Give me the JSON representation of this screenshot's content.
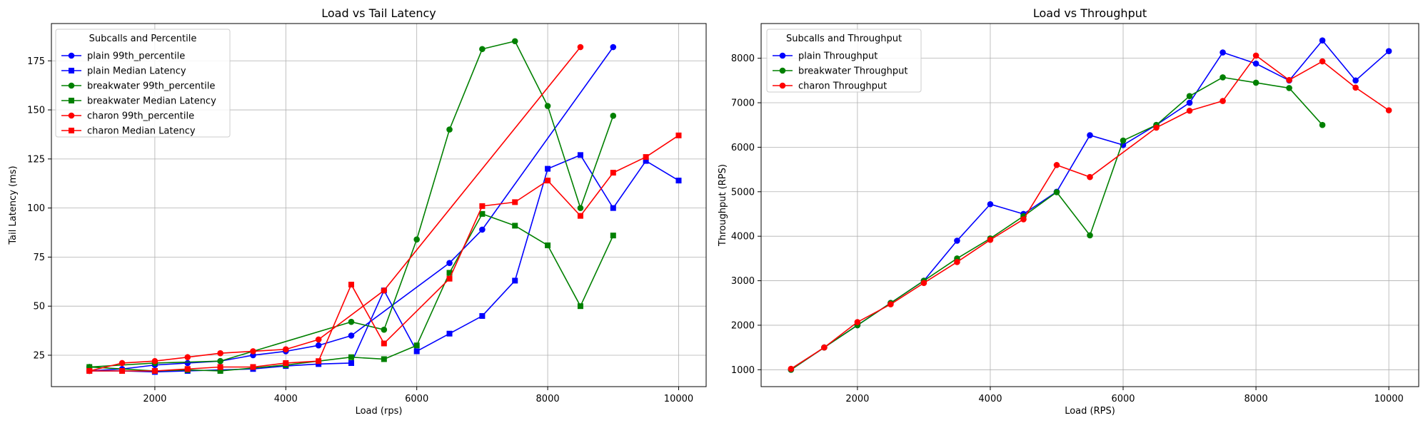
{
  "chart_data": [
    {
      "type": "line",
      "title": "Load vs Tail Latency",
      "xlabel": "Load (rps)",
      "ylabel": "Tail Latency (ms)",
      "xlim": [
        420,
        10420
      ],
      "ylim": [
        9,
        194
      ],
      "xticks": [
        2000,
        4000,
        6000,
        8000,
        10000
      ],
      "yticks": [
        25,
        50,
        75,
        100,
        125,
        150,
        175
      ],
      "grid": true,
      "legend_title": "Subcalls and Percentile",
      "legend_position": "top-left",
      "series": [
        {
          "name": "plain 99th_percentile",
          "color": "#0000ff",
          "marker": "circle",
          "x": [
            1000,
            1500,
            2000,
            2500,
            3000,
            3500,
            4000,
            4500,
            5000,
            6500,
            7000,
            9000
          ],
          "y": [
            17,
            18,
            20,
            21,
            22,
            25,
            27,
            30,
            35,
            72,
            89,
            182
          ]
        },
        {
          "name": "plain Median Latency",
          "color": "#0000ff",
          "marker": "square",
          "x": [
            1000,
            1500,
            2000,
            2500,
            3000,
            3500,
            4000,
            4500,
            5000,
            5500,
            6000,
            6500,
            7000,
            7500,
            8000,
            8500,
            9000,
            9500,
            10000
          ],
          "y": [
            17,
            17,
            16.5,
            17,
            17.5,
            18,
            19.5,
            20.5,
            21,
            58,
            27,
            36,
            45,
            63,
            120,
            127,
            100,
            124,
            114
          ]
        },
        {
          "name": "breakwater 99th_percentile",
          "color": "#008000",
          "marker": "circle",
          "x": [
            1000,
            2000,
            3000,
            5000,
            5500,
            6000,
            6500,
            7000,
            7500,
            8000,
            8500,
            9000
          ],
          "y": [
            19,
            21,
            22,
            42,
            38,
            84,
            140,
            181,
            185,
            152,
            100,
            147
          ]
        },
        {
          "name": "breakwater Median Latency",
          "color": "#008000",
          "marker": "square",
          "x": [
            1000,
            2000,
            2500,
            3000,
            4000,
            5000,
            5500,
            6000,
            6500,
            7000,
            7500,
            8000,
            8500,
            9000
          ],
          "y": [
            19,
            17,
            17.5,
            17,
            20,
            24,
            23,
            30,
            67,
            97,
            91,
            81,
            50,
            86
          ]
        },
        {
          "name": "charon 99th_percentile",
          "color": "#ff0000",
          "marker": "circle",
          "x": [
            1000,
            1500,
            2000,
            2500,
            3000,
            3500,
            4000,
            4500,
            5500,
            8500
          ],
          "y": [
            17,
            21,
            22,
            24,
            26,
            27,
            28,
            33,
            58,
            182
          ]
        },
        {
          "name": "charon Median Latency",
          "color": "#ff0000",
          "marker": "square",
          "x": [
            1000,
            1500,
            2000,
            2500,
            3000,
            3500,
            4000,
            4500,
            5000,
            5500,
            6500,
            7000,
            7500,
            8000,
            8500,
            9000,
            9500,
            10000
          ],
          "y": [
            17,
            17,
            17,
            18,
            19,
            19,
            21,
            22,
            61,
            31,
            64,
            101,
            103,
            114,
            96,
            118,
            126,
            137
          ]
        }
      ]
    },
    {
      "type": "line",
      "title": "Load vs Throughput",
      "xlabel": "Load (RPS)",
      "ylabel": "Throughput (RPS)",
      "xlim": [
        550,
        10450
      ],
      "ylim": [
        620,
        8780
      ],
      "xticks": [
        2000,
        4000,
        6000,
        8000,
        10000
      ],
      "yticks": [
        1000,
        2000,
        3000,
        4000,
        5000,
        6000,
        7000,
        8000
      ],
      "grid": true,
      "legend_title": "Subcalls and Throughput",
      "legend_position": "top-left",
      "series": [
        {
          "name": "plain Throughput",
          "color": "#0000ff",
          "marker": "circle",
          "x": [
            1000,
            1500,
            2000,
            2500,
            3000,
            3500,
            4000,
            4500,
            5000,
            5500,
            6000,
            6500,
            7000,
            7500,
            8000,
            8500,
            9000,
            9500,
            10000
          ],
          "y": [
            1000,
            1500,
            2000,
            2500,
            3000,
            3900,
            4720,
            4500,
            5000,
            6270,
            6050,
            6500,
            7000,
            8130,
            7880,
            7500,
            8400,
            7500,
            8160
          ]
        },
        {
          "name": "breakwater Throughput",
          "color": "#008000",
          "marker": "circle",
          "x": [
            1000,
            1500,
            2000,
            2500,
            3000,
            3500,
            4000,
            4500,
            5000,
            5500,
            6000,
            6500,
            7000,
            7500,
            8000,
            8500,
            9000
          ],
          "y": [
            1000,
            1500,
            2000,
            2500,
            3000,
            3500,
            3950,
            4450,
            4990,
            4020,
            6150,
            6500,
            7150,
            7570,
            7450,
            7330,
            6500
          ]
        },
        {
          "name": "charon Throughput",
          "color": "#ff0000",
          "marker": "circle",
          "x": [
            1000,
            1500,
            2000,
            2500,
            3000,
            3500,
            4000,
            4500,
            5000,
            5500,
            6500,
            7000,
            7500,
            8000,
            8500,
            9000,
            9500,
            10000
          ],
          "y": [
            1020,
            1500,
            2070,
            2470,
            2950,
            3420,
            3920,
            4380,
            5600,
            5330,
            6440,
            6820,
            7040,
            8060,
            7510,
            7930,
            7340,
            6830
          ]
        }
      ]
    }
  ]
}
